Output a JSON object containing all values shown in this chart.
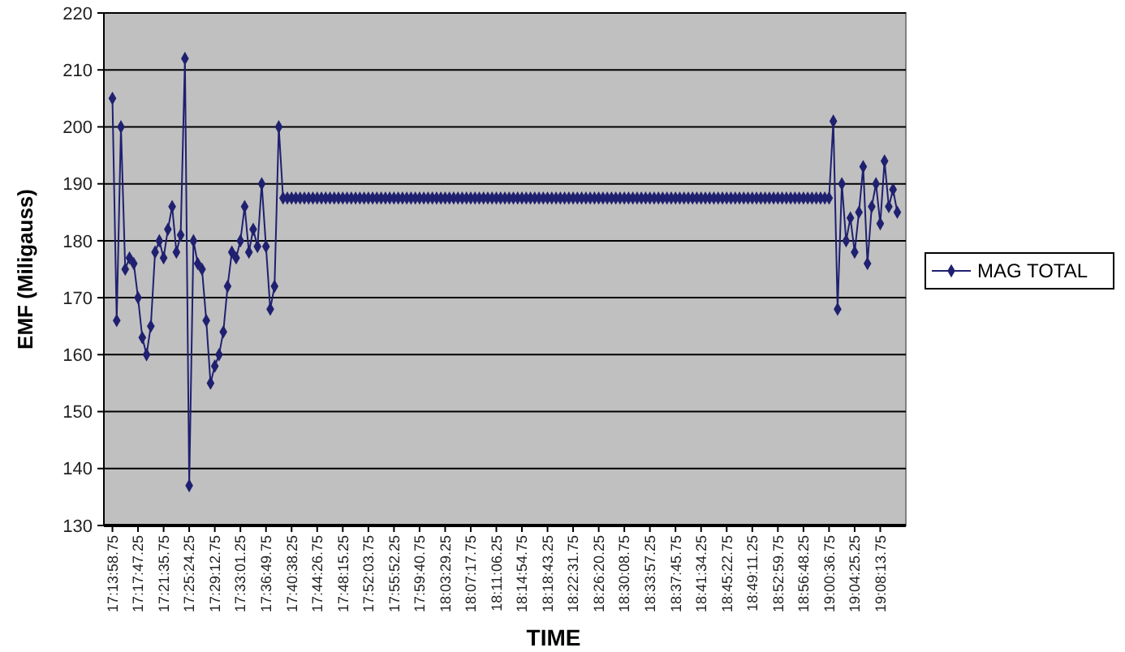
{
  "chart_data": {
    "type": "line",
    "xlabel": "TIME",
    "ylabel": "EMF (Miligauss)",
    "legend": "right",
    "grid": "y",
    "marker": "diamond",
    "line_style": "solid",
    "ylim": [
      130,
      220
    ],
    "yticks": [
      130,
      140,
      150,
      160,
      170,
      180,
      190,
      200,
      210,
      220
    ],
    "categories": [
      "17:13:58.75",
      null,
      null,
      null,
      null,
      null,
      "17:17:47.25",
      null,
      null,
      null,
      null,
      null,
      "17:21:35.75",
      null,
      null,
      null,
      null,
      null,
      "17:25:24.25",
      null,
      null,
      null,
      null,
      null,
      "17:29:12.75",
      null,
      null,
      null,
      null,
      null,
      "17:33:01.25",
      null,
      null,
      null,
      null,
      null,
      "17:36:49.75",
      null,
      null,
      null,
      null,
      null,
      "17:40:38.25",
      null,
      null,
      null,
      null,
      null,
      "17:44:26.75",
      null,
      null,
      null,
      null,
      null,
      "17:48:15.25",
      null,
      null,
      null,
      null,
      null,
      "17:52:03.75",
      null,
      null,
      null,
      null,
      null,
      "17:55:52.25",
      null,
      null,
      null,
      null,
      null,
      "17:59:40.75",
      null,
      null,
      null,
      null,
      null,
      "18:03:29.25",
      null,
      null,
      null,
      null,
      null,
      "18:07:17.75",
      null,
      null,
      null,
      null,
      null,
      "18:11:06.25",
      null,
      null,
      null,
      null,
      null,
      "18:14:54.75",
      null,
      null,
      null,
      null,
      null,
      "18:18:43.25",
      null,
      null,
      null,
      null,
      null,
      "18:22:31.75",
      null,
      null,
      null,
      null,
      null,
      "18:26:20.25",
      null,
      null,
      null,
      null,
      null,
      "18:30:08.75",
      null,
      null,
      null,
      null,
      null,
      "18:33:57.25",
      null,
      null,
      null,
      null,
      null,
      "18:37:45.75",
      null,
      null,
      null,
      null,
      null,
      "18:41:34.25",
      null,
      null,
      null,
      null,
      null,
      "18:45:22.75",
      null,
      null,
      null,
      null,
      null,
      "18:49:11.25",
      null,
      null,
      null,
      null,
      null,
      "18:52:59.75",
      null,
      null,
      null,
      null,
      null,
      "18:56:48.25",
      null,
      null,
      null,
      null,
      null,
      "19:00:36.75",
      null,
      null,
      null,
      null,
      null,
      "19:04:25.25",
      null,
      null,
      null,
      null,
      null,
      "19:08:13.75",
      null,
      null,
      null,
      null
    ],
    "series": [
      {
        "name": "MAG TOTAL",
        "color": "#1f2070",
        "values": [
          205,
          166,
          200,
          175,
          177,
          176,
          170,
          163,
          160,
          165,
          178,
          180,
          177,
          182,
          186,
          178,
          181,
          212,
          137,
          180,
          176,
          175,
          166,
          155,
          158,
          160,
          164,
          172,
          178,
          177,
          180,
          186,
          178,
          182,
          179,
          190,
          179,
          168,
          172,
          200,
          187.5,
          187.5,
          187.5,
          187.5,
          187.5,
          187.5,
          187.5,
          187.5,
          187.5,
          187.5,
          187.5,
          187.5,
          187.5,
          187.5,
          187.5,
          187.5,
          187.5,
          187.5,
          187.5,
          187.5,
          187.5,
          187.5,
          187.5,
          187.5,
          187.5,
          187.5,
          187.5,
          187.5,
          187.5,
          187.5,
          187.5,
          187.5,
          187.5,
          187.5,
          187.5,
          187.5,
          187.5,
          187.5,
          187.5,
          187.5,
          187.5,
          187.5,
          187.5,
          187.5,
          187.5,
          187.5,
          187.5,
          187.5,
          187.5,
          187.5,
          187.5,
          187.5,
          187.5,
          187.5,
          187.5,
          187.5,
          187.5,
          187.5,
          187.5,
          187.5,
          187.5,
          187.5,
          187.5,
          187.5,
          187.5,
          187.5,
          187.5,
          187.5,
          187.5,
          187.5,
          187.5,
          187.5,
          187.5,
          187.5,
          187.5,
          187.5,
          187.5,
          187.5,
          187.5,
          187.5,
          187.5,
          187.5,
          187.5,
          187.5,
          187.5,
          187.5,
          187.5,
          187.5,
          187.5,
          187.5,
          187.5,
          187.5,
          187.5,
          187.5,
          187.5,
          187.5,
          187.5,
          187.5,
          187.5,
          187.5,
          187.5,
          187.5,
          187.5,
          187.5,
          187.5,
          187.5,
          187.5,
          187.5,
          187.5,
          187.5,
          187.5,
          187.5,
          187.5,
          187.5,
          187.5,
          187.5,
          187.5,
          187.5,
          187.5,
          187.5,
          187.5,
          187.5,
          187.5,
          187.5,
          187.5,
          187.5,
          187.5,
          187.5,
          187.5,
          201,
          168,
          190,
          180,
          184,
          178,
          185,
          193,
          176,
          186,
          190,
          183,
          194,
          186,
          189,
          185
        ]
      }
    ]
  }
}
